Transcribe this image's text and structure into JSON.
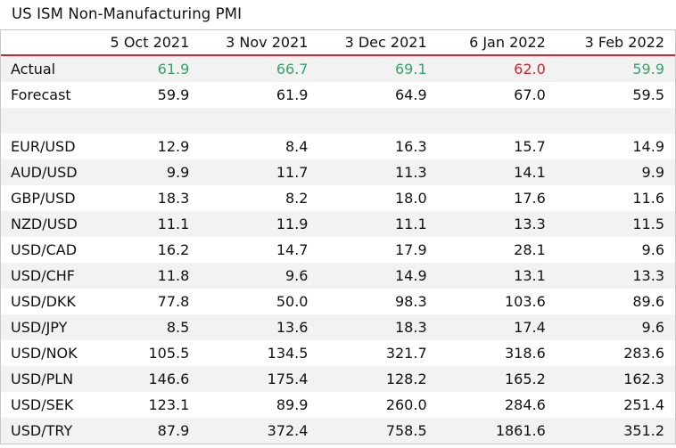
{
  "title": "US ISM Non-Manufacturing PMI",
  "columns": [
    "5 Oct 2021",
    "3 Nov 2021",
    "3 Dec 2021",
    "6 Jan 2022",
    "3 Feb 2022"
  ],
  "colors": {
    "positive": "#3aa36a",
    "negative": "#d2272f",
    "header_rule": "#d2272f",
    "alt_row": "#f2f2f2"
  },
  "actual": {
    "label": "Actual",
    "values": [
      "61.9",
      "66.7",
      "69.1",
      "62.0",
      "59.9"
    ],
    "directions": [
      "up",
      "up",
      "up",
      "down",
      "up"
    ]
  },
  "forecast": {
    "label": "Forecast",
    "values": [
      "59.9",
      "61.9",
      "64.9",
      "67.0",
      "59.5"
    ]
  },
  "rows": [
    {
      "label": "EUR/USD",
      "values": [
        "12.9",
        "8.4",
        "16.3",
        "15.7",
        "14.9"
      ]
    },
    {
      "label": "AUD/USD",
      "values": [
        "9.9",
        "11.7",
        "11.3",
        "14.1",
        "9.9"
      ]
    },
    {
      "label": "GBP/USD",
      "values": [
        "18.3",
        "8.2",
        "18.0",
        "17.6",
        "11.6"
      ]
    },
    {
      "label": "NZD/USD",
      "values": [
        "11.1",
        "11.9",
        "11.1",
        "13.3",
        "11.5"
      ]
    },
    {
      "label": "USD/CAD",
      "values": [
        "16.2",
        "14.7",
        "17.9",
        "28.1",
        "9.6"
      ]
    },
    {
      "label": "USD/CHF",
      "values": [
        "11.8",
        "9.6",
        "14.9",
        "13.1",
        "13.3"
      ]
    },
    {
      "label": "USD/DKK",
      "values": [
        "77.8",
        "50.0",
        "98.3",
        "103.6",
        "89.6"
      ]
    },
    {
      "label": "USD/JPY",
      "values": [
        "8.5",
        "13.6",
        "18.3",
        "17.4",
        "9.6"
      ]
    },
    {
      "label": "USD/NOK",
      "values": [
        "105.5",
        "134.5",
        "321.7",
        "318.6",
        "283.6"
      ]
    },
    {
      "label": "USD/PLN",
      "values": [
        "146.6",
        "175.4",
        "128.2",
        "165.2",
        "162.3"
      ]
    },
    {
      "label": "USD/SEK",
      "values": [
        "123.1",
        "89.9",
        "260.0",
        "284.6",
        "251.4"
      ]
    },
    {
      "label": "USD/TRY",
      "values": [
        "87.9",
        "372.4",
        "758.5",
        "1861.6",
        "351.2"
      ]
    }
  ]
}
